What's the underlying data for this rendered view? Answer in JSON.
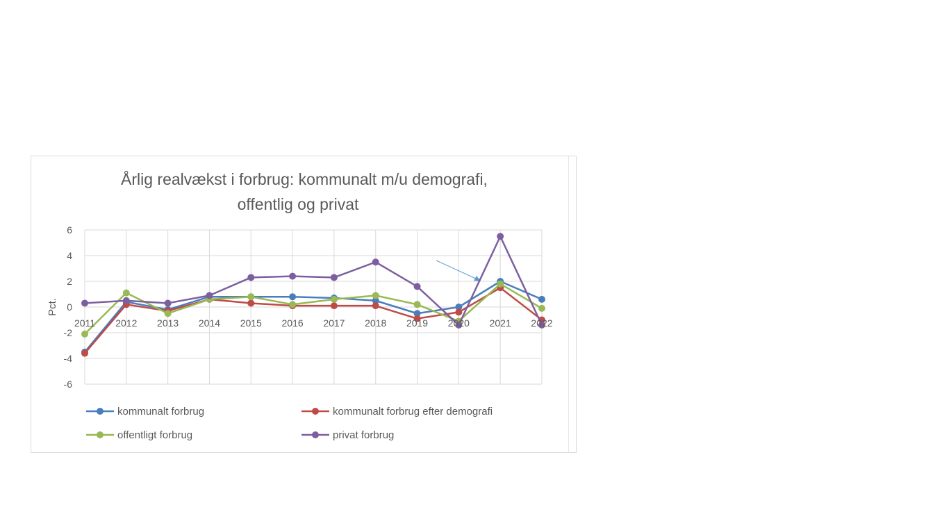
{
  "chart_data": {
    "type": "line",
    "title_line1": "Årlig realvækst i forbrug: kommunalt m/u demografi,",
    "title_line2": "offentlig og privat",
    "xlabel": "",
    "ylabel": "Pct.",
    "ylim": [
      -6,
      6
    ],
    "yticks": [
      "6",
      "4",
      "2",
      "0",
      "-2",
      "-4",
      "-6"
    ],
    "grid": true,
    "legend_position": "bottom",
    "categories": [
      "2011",
      "2012",
      "2013",
      "2014",
      "2015",
      "2016",
      "2017",
      "2018",
      "2019",
      "2020",
      "2021",
      "2022"
    ],
    "series": [
      {
        "name": "kommunalt forbrug",
        "color": "#4a7ebb",
        "values": [
          -3.5,
          0.4,
          -0.2,
          0.8,
          0.8,
          0.8,
          0.7,
          0.5,
          -0.5,
          0.0,
          2.0,
          0.6
        ]
      },
      {
        "name": "kommunalt forbrug efter demografi",
        "color": "#be4b48",
        "values": [
          -3.6,
          0.2,
          -0.3,
          0.6,
          0.3,
          0.1,
          0.1,
          0.1,
          -0.9,
          -0.4,
          1.5,
          -1.0
        ]
      },
      {
        "name": "offentligt forbrug",
        "color": "#98b954",
        "values": [
          -2.1,
          1.1,
          -0.5,
          0.6,
          0.8,
          0.2,
          0.6,
          0.9,
          0.2,
          -1.1,
          1.8,
          -0.1
        ]
      },
      {
        "name": "privat forbrug",
        "color": "#7d5fa0",
        "values": [
          0.3,
          0.5,
          0.3,
          0.9,
          2.3,
          2.4,
          2.3,
          3.5,
          1.6,
          -1.4,
          5.5,
          -1.4
        ]
      }
    ],
    "annotation_arrow_color": "#5b9bd5"
  }
}
